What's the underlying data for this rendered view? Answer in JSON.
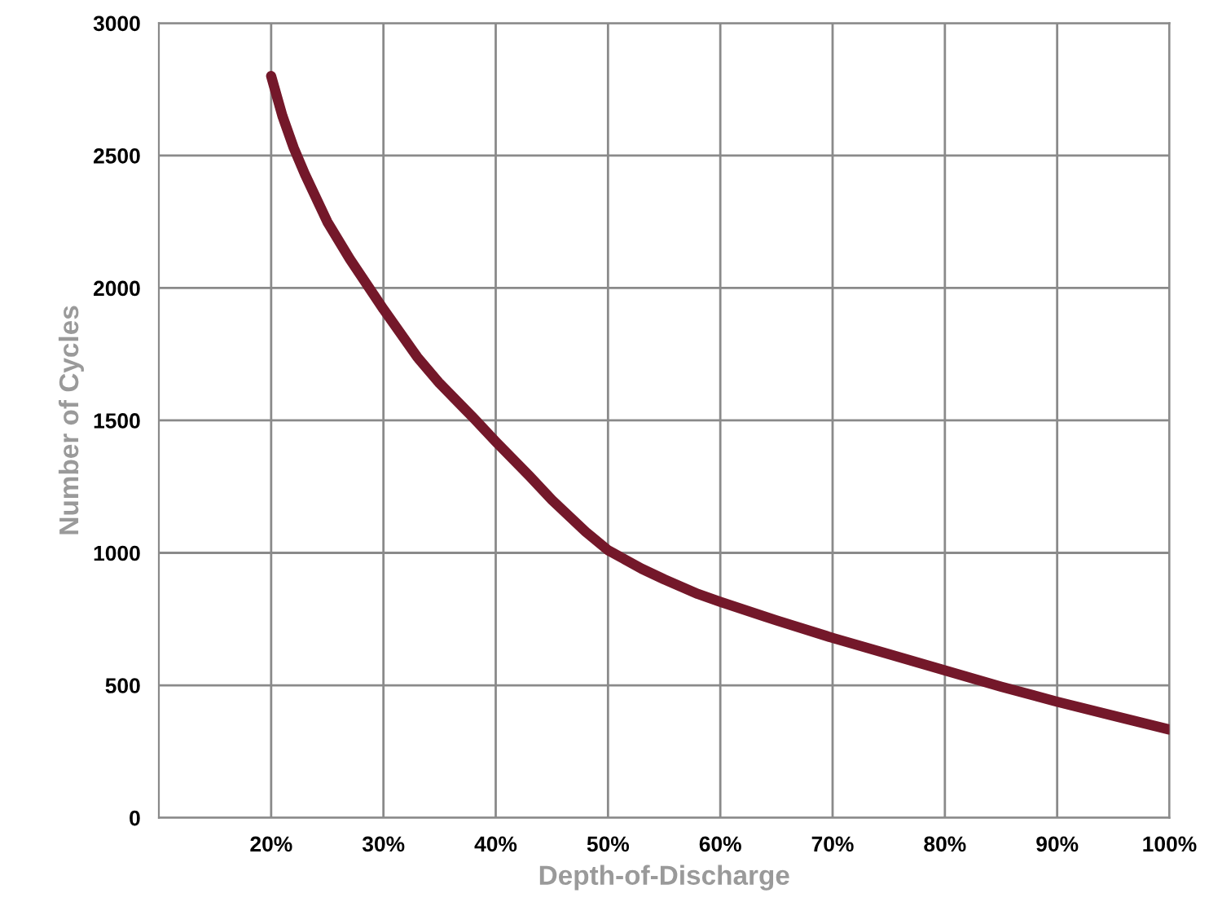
{
  "chart_data": {
    "type": "line",
    "xlabel": "Depth-of-Discharge",
    "ylabel": "Number of Cycles",
    "x": [
      20,
      21,
      22,
      23,
      25,
      27,
      30,
      33,
      35,
      38,
      40,
      43,
      45,
      48,
      50,
      53,
      55,
      58,
      60,
      65,
      70,
      75,
      80,
      85,
      90,
      95,
      100
    ],
    "series": [
      {
        "color": "#74182a",
        "values": [
          2800,
          2650,
          2530,
          2430,
          2250,
          2110,
          1920,
          1740,
          1640,
          1510,
          1420,
          1290,
          1200,
          1080,
          1010,
          940,
          900,
          845,
          815,
          745,
          679,
          618,
          556,
          495,
          438,
          385,
          333
        ]
      }
    ],
    "xlim": [
      10,
      100
    ],
    "xticks": [
      {
        "value": 20,
        "label": "20%"
      },
      {
        "value": 30,
        "label": "30%"
      },
      {
        "value": 40,
        "label": "40%"
      },
      {
        "value": 50,
        "label": "50%"
      },
      {
        "value": 60,
        "label": "60%"
      },
      {
        "value": 70,
        "label": "70%"
      },
      {
        "value": 80,
        "label": "80%"
      },
      {
        "value": 90,
        "label": "90%"
      },
      {
        "value": 100,
        "label": "100%"
      }
    ],
    "ylim": [
      0,
      3000
    ],
    "yticks": [
      0,
      500,
      1000,
      1500,
      2000,
      2500,
      3000
    ],
    "grid": true,
    "marker": "none",
    "line_style": "solid"
  }
}
